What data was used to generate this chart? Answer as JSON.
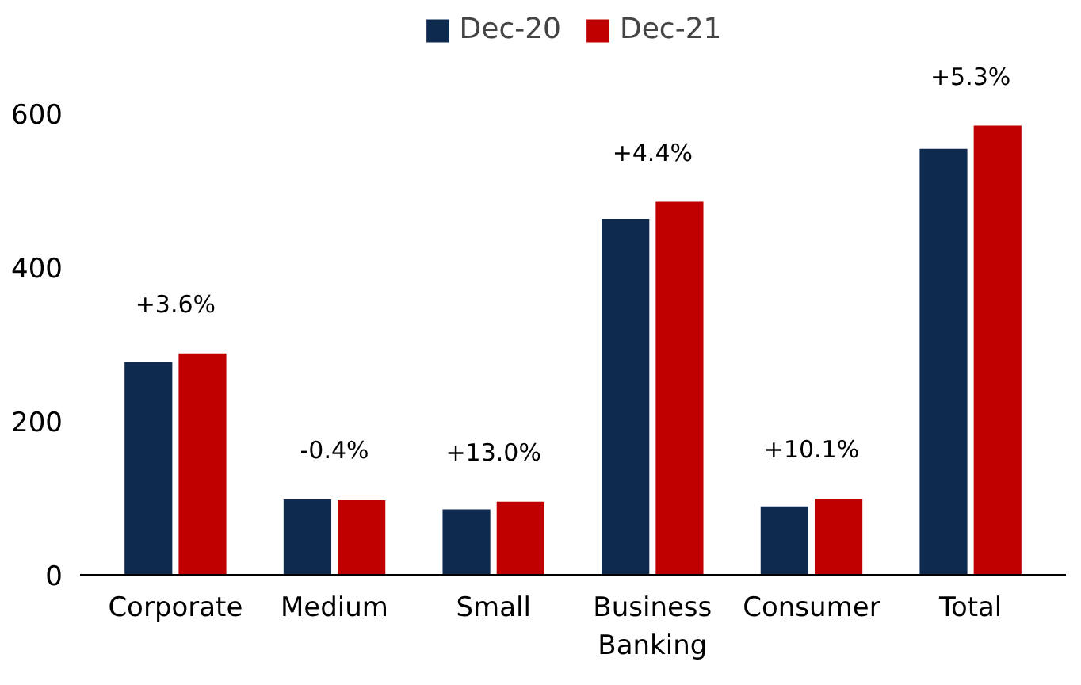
{
  "chart_data": {
    "type": "bar",
    "categories": [
      "Corporate",
      "Medium",
      "Small",
      "Business Banking",
      "Consumer",
      "Total"
    ],
    "series": [
      {
        "name": "Dec-20",
        "color": "#0f2a4f",
        "values": [
          277,
          98,
          85,
          463,
          89,
          554
        ]
      },
      {
        "name": "Dec-21",
        "color": "#c00000",
        "values": [
          288,
          97,
          95,
          485,
          99,
          584
        ]
      }
    ],
    "ylim": [
      0,
      730
    ],
    "yticks": [
      0,
      200,
      400,
      600
    ],
    "grid": false,
    "legend": "top",
    "annotations": [
      "+3.6%",
      "-0.4%",
      "+13.0%",
      "+4.4%",
      "+10.1%",
      "+5.3%"
    ]
  }
}
